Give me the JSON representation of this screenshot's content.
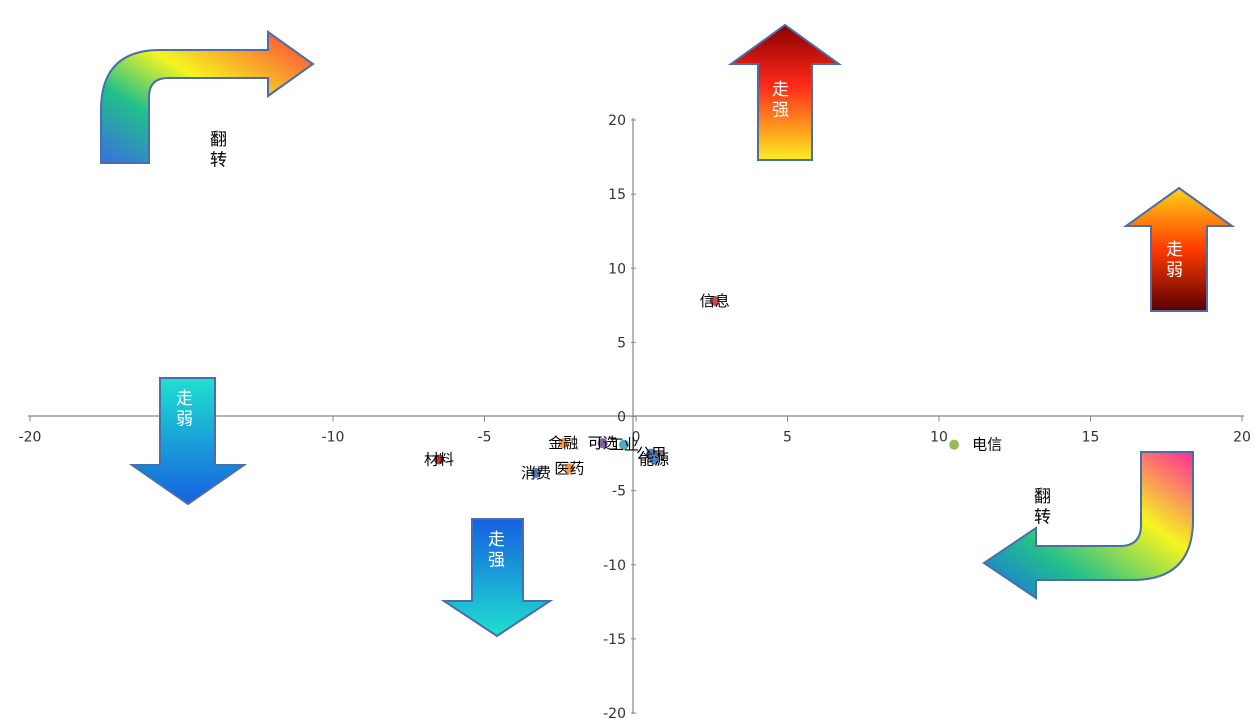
{
  "chart_data": {
    "type": "scatter",
    "title": "",
    "xlabel": "",
    "ylabel": "",
    "xlim": [
      -20,
      20
    ],
    "ylim": [
      -20,
      20
    ],
    "x_ticks": [
      "-20",
      "-15",
      "-10",
      "-5",
      "0",
      "5",
      "10",
      "15",
      "20"
    ],
    "y_ticks": [
      "-20",
      "-15",
      "-10",
      "-5",
      "0",
      "5",
      "10",
      "15",
      "20"
    ],
    "grid": false,
    "points": [
      {
        "label": "信息",
        "x": 2.6,
        "y": 7.8,
        "color": "#c0504d"
      },
      {
        "label": "电信",
        "x": 10.5,
        "y": -1.9,
        "color": "#9bbb59"
      },
      {
        "label": "材料",
        "x": -6.5,
        "y": -2.9,
        "color": "#c0392b"
      },
      {
        "label": "金融",
        "x": -2.4,
        "y": -1.8,
        "color": "#f79646"
      },
      {
        "label": "可选",
        "x": -1.1,
        "y": -1.8,
        "color": "#8064a2"
      },
      {
        "label": "工业",
        "x": -0.4,
        "y": -1.9,
        "color": "#4bacc6"
      },
      {
        "label": "公用",
        "x": 0.5,
        "y": -2.5,
        "color": "#4f81bd"
      },
      {
        "label": "能源",
        "x": 0.6,
        "y": -2.9,
        "color": "#4f81bd"
      },
      {
        "label": "消费",
        "x": -3.3,
        "y": -3.8,
        "color": "#4f81bd"
      },
      {
        "label": "医药",
        "x": -2.2,
        "y": -3.5,
        "color": "#f79646"
      }
    ]
  },
  "annotations": {
    "flip_label": "翻转",
    "strong_label": "走强",
    "weak_label": "走弱"
  }
}
